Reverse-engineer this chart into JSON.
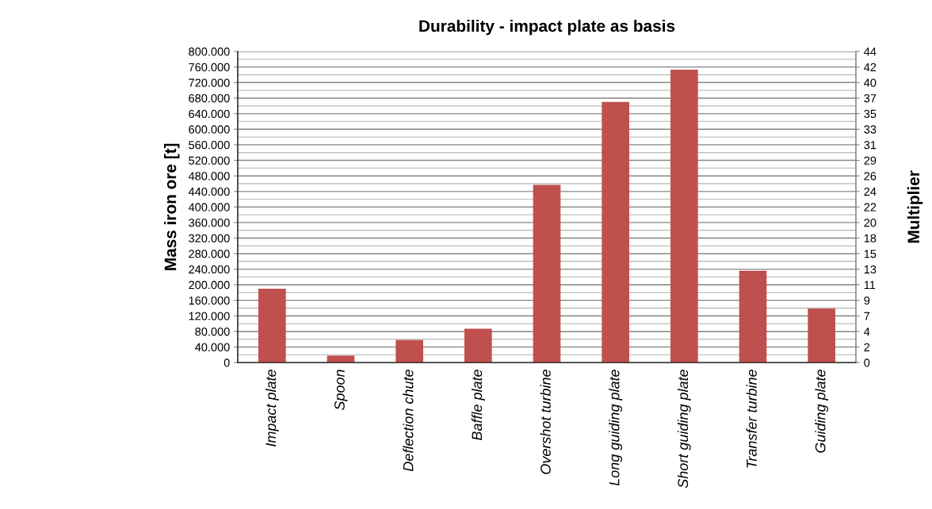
{
  "chart_data": {
    "type": "bar",
    "title": "Durability - impact plate as basis",
    "ylabel": "Mass iron ore [t]",
    "y2label": "Multiplier",
    "categories": [
      "Impact plate",
      "Spoon",
      "Deflection chute",
      "Baffle plate",
      "Overshot turbine",
      "Long guiding plate",
      "Short guiding plate",
      "Transfer turbine",
      "Guiding plate"
    ],
    "values": [
      190000,
      18000,
      58000,
      87000,
      457000,
      670000,
      753000,
      236000,
      139000
    ],
    "color": "#c0504d",
    "ylim": [
      0,
      800000
    ],
    "yticks": [
      {
        "value": 0,
        "label": "0"
      },
      {
        "value": 40000,
        "label": "40.000"
      },
      {
        "value": 80000,
        "label": "80.000"
      },
      {
        "value": 120000,
        "label": "120.000"
      },
      {
        "value": 160000,
        "label": "160.000"
      },
      {
        "value": 200000,
        "label": "200.000"
      },
      {
        "value": 240000,
        "label": "240.000"
      },
      {
        "value": 280000,
        "label": "280.000"
      },
      {
        "value": 320000,
        "label": "320.000"
      },
      {
        "value": 360000,
        "label": "360.000"
      },
      {
        "value": 400000,
        "label": "400.000"
      },
      {
        "value": 440000,
        "label": "440.000"
      },
      {
        "value": 480000,
        "label": "480.000"
      },
      {
        "value": 520000,
        "label": "520.000"
      },
      {
        "value": 560000,
        "label": "560.000"
      },
      {
        "value": 600000,
        "label": "600.000"
      },
      {
        "value": 640000,
        "label": "640.000"
      },
      {
        "value": 680000,
        "label": "680.000"
      },
      {
        "value": 720000,
        "label": "720.000"
      },
      {
        "value": 760000,
        "label": "760.000"
      },
      {
        "value": 800000,
        "label": "800.000"
      }
    ],
    "y2lim": [
      0,
      44
    ],
    "y2ticks": [
      0,
      {
        "value": 2.2,
        "label": "2"
      },
      {
        "value": 4.4,
        "label": "4"
      },
      {
        "value": 6.6,
        "label": "7"
      },
      {
        "value": 8.8,
        "label": "9"
      },
      11,
      {
        "value": 13.2,
        "label": "13"
      },
      {
        "value": 15.4,
        "label": "15"
      },
      {
        "value": 17.6,
        "label": "18"
      },
      {
        "value": 19.8,
        "label": "20"
      },
      22,
      {
        "value": 24.2,
        "label": "24"
      },
      {
        "value": 26.4,
        "label": "26"
      },
      {
        "value": 28.6,
        "label": "29"
      },
      {
        "value": 30.8,
        "label": "31"
      },
      33,
      {
        "value": 35.2,
        "label": "35"
      },
      {
        "value": 37.4,
        "label": "37"
      },
      {
        "value": 39.6,
        "label": "40"
      },
      {
        "value": 41.8,
        "label": "42"
      },
      44
    ],
    "grid": "y",
    "legend": false
  }
}
